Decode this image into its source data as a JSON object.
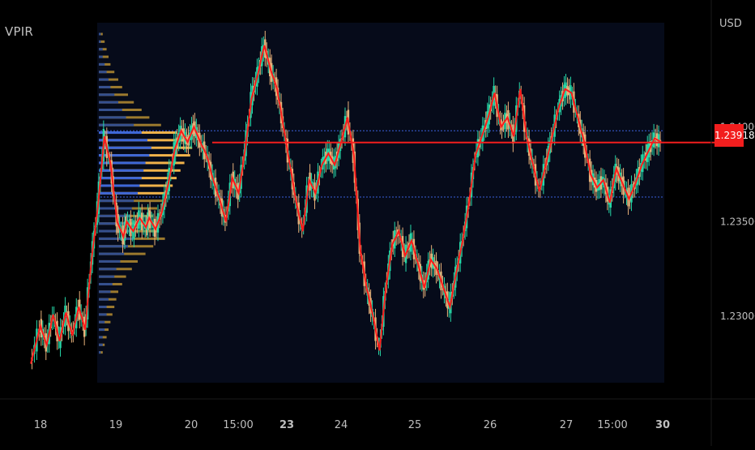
{
  "indicator": {
    "name": "VPIR"
  },
  "price_axis": {
    "currency": "USD",
    "current_price_label": "1.23918"
  },
  "colors": {
    "background": "#000000",
    "value_area": "#060b1a",
    "candle_up": "#26d8a8",
    "candle_down": "#e8b27a",
    "trend_line": "#ff1a1a",
    "current_price": "#f21e1e",
    "value_area_line": "#3a5fd9",
    "profile_buy": "#3d67d8",
    "profile_sell": "#f0b24a",
    "profile_outer": "#9c7a2e",
    "profile_inner": "#5fc8e0",
    "axis_text": "#bfbfbf"
  },
  "chart_data": {
    "type": "candlestick",
    "title": "",
    "x_tick_labels": [
      "18",
      "19",
      "20",
      "15:00",
      "23",
      "24",
      "25",
      "26",
      "27",
      "15:00",
      "30"
    ],
    "x_tick_bold": [
      false,
      false,
      false,
      false,
      true,
      false,
      false,
      false,
      false,
      false,
      true
    ],
    "y_tick_labels": [
      "1.24000",
      "1.23500",
      "1.23000"
    ],
    "y_ticks": [
      1.24,
      1.235,
      1.23
    ],
    "ylim": [
      1.2265,
      1.2455
    ],
    "value_area": {
      "high": 1.2398,
      "low": 1.2363
    },
    "current_price": 1.23918,
    "price_path": [
      [
        0,
        1.2275
      ],
      [
        3,
        1.2295
      ],
      [
        5,
        1.2285
      ],
      [
        7,
        1.2301
      ],
      [
        9,
        1.2287
      ],
      [
        11,
        1.2302
      ],
      [
        13,
        1.229
      ],
      [
        15,
        1.2305
      ],
      [
        17,
        1.2293
      ],
      [
        19,
        1.233
      ],
      [
        21,
        1.2358
      ],
      [
        23,
        1.2395
      ],
      [
        25,
        1.238
      ],
      [
        27,
        1.235
      ],
      [
        29,
        1.2342
      ],
      [
        30,
        1.235
      ],
      [
        32,
        1.2345
      ],
      [
        34,
        1.2352
      ],
      [
        36,
        1.2347
      ],
      [
        37,
        1.2352
      ],
      [
        39,
        1.2346
      ],
      [
        41,
        1.2355
      ],
      [
        43,
        1.237
      ],
      [
        45,
        1.2388
      ],
      [
        47,
        1.2398
      ],
      [
        49,
        1.2392
      ],
      [
        51,
        1.24
      ],
      [
        53,
        1.2392
      ],
      [
        55,
        1.2385
      ],
      [
        57,
        1.2372
      ],
      [
        59,
        1.2362
      ],
      [
        61,
        1.235
      ],
      [
        63,
        1.2373
      ],
      [
        65,
        1.2365
      ],
      [
        67,
        1.2388
      ],
      [
        69,
        1.2415
      ],
      [
        71,
        1.2428
      ],
      [
        73,
        1.2443
      ],
      [
        75,
        1.243
      ],
      [
        77,
        1.242
      ],
      [
        79,
        1.24
      ],
      [
        81,
        1.238
      ],
      [
        83,
        1.236
      ],
      [
        85,
        1.2345
      ],
      [
        87,
        1.2372
      ],
      [
        89,
        1.2365
      ],
      [
        91,
        1.238
      ],
      [
        93,
        1.2386
      ],
      [
        95,
        1.238
      ],
      [
        97,
        1.2392
      ],
      [
        99,
        1.2405
      ],
      [
        101,
        1.2385
      ],
      [
        103,
        1.2335
      ],
      [
        105,
        1.2315
      ],
      [
        107,
        1.23
      ],
      [
        109,
        1.2282
      ],
      [
        111,
        1.2315
      ],
      [
        113,
        1.2338
      ],
      [
        115,
        1.2345
      ],
      [
        117,
        1.2332
      ],
      [
        119,
        1.234
      ],
      [
        121,
        1.2328
      ],
      [
        123,
        1.2315
      ],
      [
        125,
        1.233
      ],
      [
        127,
        1.2325
      ],
      [
        129,
        1.2315
      ],
      [
        131,
        1.2305
      ],
      [
        133,
        1.2323
      ],
      [
        135,
        1.234
      ],
      [
        137,
        1.236
      ],
      [
        139,
        1.2385
      ],
      [
        141,
        1.2395
      ],
      [
        143,
        1.2405
      ],
      [
        145,
        1.2418
      ],
      [
        147,
        1.24
      ],
      [
        149,
        1.2405
      ],
      [
        151,
        1.2395
      ],
      [
        153,
        1.242
      ],
      [
        155,
        1.2395
      ],
      [
        157,
        1.238
      ],
      [
        159,
        1.2366
      ],
      [
        161,
        1.238
      ],
      [
        163,
        1.2395
      ],
      [
        165,
        1.241
      ],
      [
        167,
        1.242
      ],
      [
        169,
        1.2418
      ],
      [
        171,
        1.2405
      ],
      [
        173,
        1.2392
      ],
      [
        175,
        1.2375
      ],
      [
        177,
        1.2368
      ],
      [
        179,
        1.2372
      ],
      [
        181,
        1.236
      ],
      [
        183,
        1.2378
      ],
      [
        185,
        1.237
      ],
      [
        187,
        1.2362
      ],
      [
        189,
        1.237
      ],
      [
        191,
        1.238
      ],
      [
        193,
        1.2387
      ],
      [
        195,
        1.2394
      ],
      [
        197,
        1.2392
      ]
    ],
    "volume_profile_rows": [
      [
        1.2449,
        2,
        1
      ],
      [
        1.2445,
        3,
        1
      ],
      [
        1.2441,
        4,
        2
      ],
      [
        1.2437,
        5,
        2
      ],
      [
        1.2433,
        6,
        3
      ],
      [
        1.2429,
        8,
        4
      ],
      [
        1.2425,
        10,
        5
      ],
      [
        1.2421,
        12,
        6
      ],
      [
        1.2417,
        15,
        8
      ],
      [
        1.2413,
        18,
        10
      ],
      [
        1.2409,
        22,
        12
      ],
      [
        1.2405,
        26,
        14
      ],
      [
        1.2401,
        32,
        18
      ],
      [
        1.2397,
        40,
        22
      ],
      [
        1.2393,
        46,
        25
      ],
      [
        1.2389,
        48,
        27
      ],
      [
        1.2385,
        47,
        26
      ],
      [
        1.2381,
        44,
        24
      ],
      [
        1.2377,
        42,
        23
      ],
      [
        1.2373,
        40,
        22
      ],
      [
        1.2369,
        38,
        21
      ],
      [
        1.2365,
        36,
        20
      ],
      [
        1.2361,
        33,
        18
      ],
      [
        1.2357,
        30,
        17
      ],
      [
        1.2353,
        28,
        16
      ],
      [
        1.2349,
        26,
        14
      ],
      [
        1.2345,
        30,
        16
      ],
      [
        1.2341,
        34,
        18
      ],
      [
        1.2337,
        28,
        15
      ],
      [
        1.2333,
        24,
        13
      ],
      [
        1.2329,
        20,
        11
      ],
      [
        1.2325,
        17,
        9
      ],
      [
        1.2321,
        14,
        8
      ],
      [
        1.2317,
        12,
        7
      ],
      [
        1.2313,
        10,
        6
      ],
      [
        1.2309,
        9,
        5
      ],
      [
        1.2305,
        8,
        4
      ],
      [
        1.2301,
        7,
        4
      ],
      [
        1.2297,
        6,
        3
      ],
      [
        1.2293,
        5,
        3
      ],
      [
        1.2289,
        4,
        2
      ],
      [
        1.2285,
        3,
        2
      ],
      [
        1.2281,
        2,
        1
      ]
    ]
  }
}
